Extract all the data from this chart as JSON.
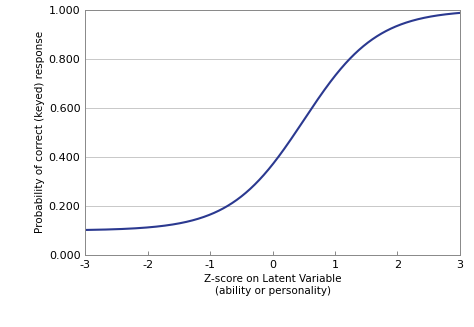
{
  "xlim": [
    -3,
    3
  ],
  "ylim": [
    0.0,
    1.0
  ],
  "xticks": [
    -3,
    -2,
    -1,
    0,
    1,
    2,
    3
  ],
  "yticks": [
    0.0,
    0.2,
    0.4,
    0.6,
    0.8,
    1.0
  ],
  "xlabel_line1": "Z-score on Latent Variable",
  "xlabel_line2": "(ability or personality)",
  "ylabel": "Probability of correct (keyed) response",
  "curve_color": "#2B3990",
  "curve_linewidth": 1.5,
  "background_color": "#ffffff",
  "grid_color": "#c8c8c8",
  "grid_linewidth": 0.7,
  "logistic_a": 1.7,
  "logistic_b": 0.5,
  "logistic_c": 0.1,
  "figsize": [
    4.74,
    3.27
  ],
  "dpi": 100
}
